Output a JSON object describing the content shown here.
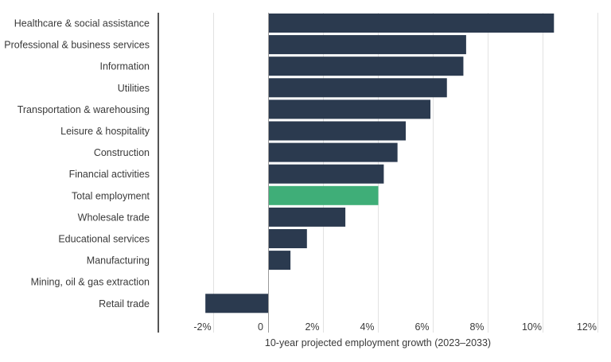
{
  "chart_data": {
    "type": "bar",
    "orientation": "horizontal",
    "categories": [
      "Healthcare & social assistance",
      "Professional & business services",
      "Information",
      "Utilities",
      "Transportation & warehousing",
      "Leisure & hospitality",
      "Construction",
      "Financial activities",
      "Total employment",
      "Wholesale trade",
      "Educational services",
      "Manufacturing",
      "Mining, oil & gas extraction",
      "Retail trade"
    ],
    "values": [
      10.4,
      7.2,
      7.1,
      6.5,
      5.9,
      5.0,
      4.7,
      4.2,
      4.0,
      2.8,
      1.4,
      0.8,
      0.0,
      -2.3
    ],
    "highlight_category": "Total employment",
    "xlabel": "10-year projected employment growth (2023–2033)",
    "ylabel": "",
    "xlim": [
      -2.5,
      12
    ],
    "x_ticks": [
      -2,
      0,
      2,
      4,
      6,
      8,
      10,
      12
    ],
    "x_tick_labels": [
      "-2%",
      "0",
      "2%",
      "4%",
      "6%",
      "8%",
      "10%",
      "12%"
    ],
    "grid": "vertical",
    "legend": "none"
  },
  "colors": {
    "bar": "#2b3a4f",
    "highlight": "#3fae78",
    "grid": "#e2e2e2",
    "zero_line": "#9a9a9a",
    "left_axis": "#555555",
    "text": "#3a3a3a"
  }
}
